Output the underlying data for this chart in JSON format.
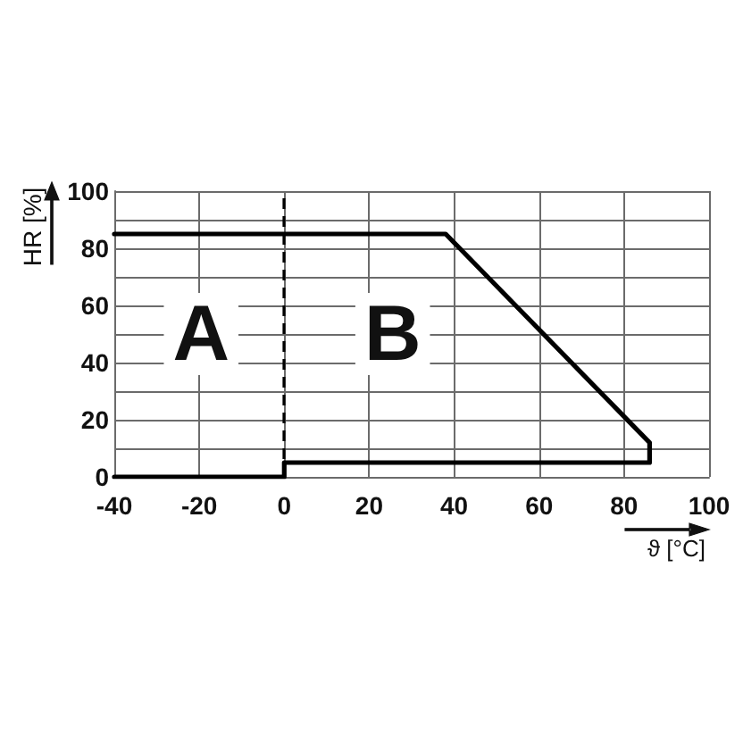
{
  "chart_data": {
    "type": "line",
    "xlabel": "ϑ [°C]",
    "ylabel": "HR [%]",
    "x": [
      -40,
      38,
      86,
      86,
      0,
      0,
      -40
    ],
    "values": [
      85,
      85,
      12,
      5,
      5,
      0,
      0
    ],
    "color": "#000000",
    "xlim": [
      -40,
      100
    ],
    "ylim": [
      0,
      100
    ],
    "xticks": [
      -40,
      -20,
      0,
      20,
      40,
      60,
      80,
      100
    ],
    "yticks": [
      0,
      {
        "value": 10,
        "label": null
      },
      20,
      {
        "value": 30,
        "label": null
      },
      40,
      {
        "value": 50,
        "label": null
      },
      60,
      {
        "value": 70,
        "label": null
      },
      80,
      {
        "value": 90,
        "label": null
      },
      100
    ],
    "grid": true,
    "marker": "none",
    "line_style": "solid",
    "ref_lines": [
      {
        "axis": "x",
        "value": 0,
        "line_style": "dashed",
        "color": "#000000"
      }
    ],
    "annotations": [
      "A",
      "B"
    ]
  }
}
